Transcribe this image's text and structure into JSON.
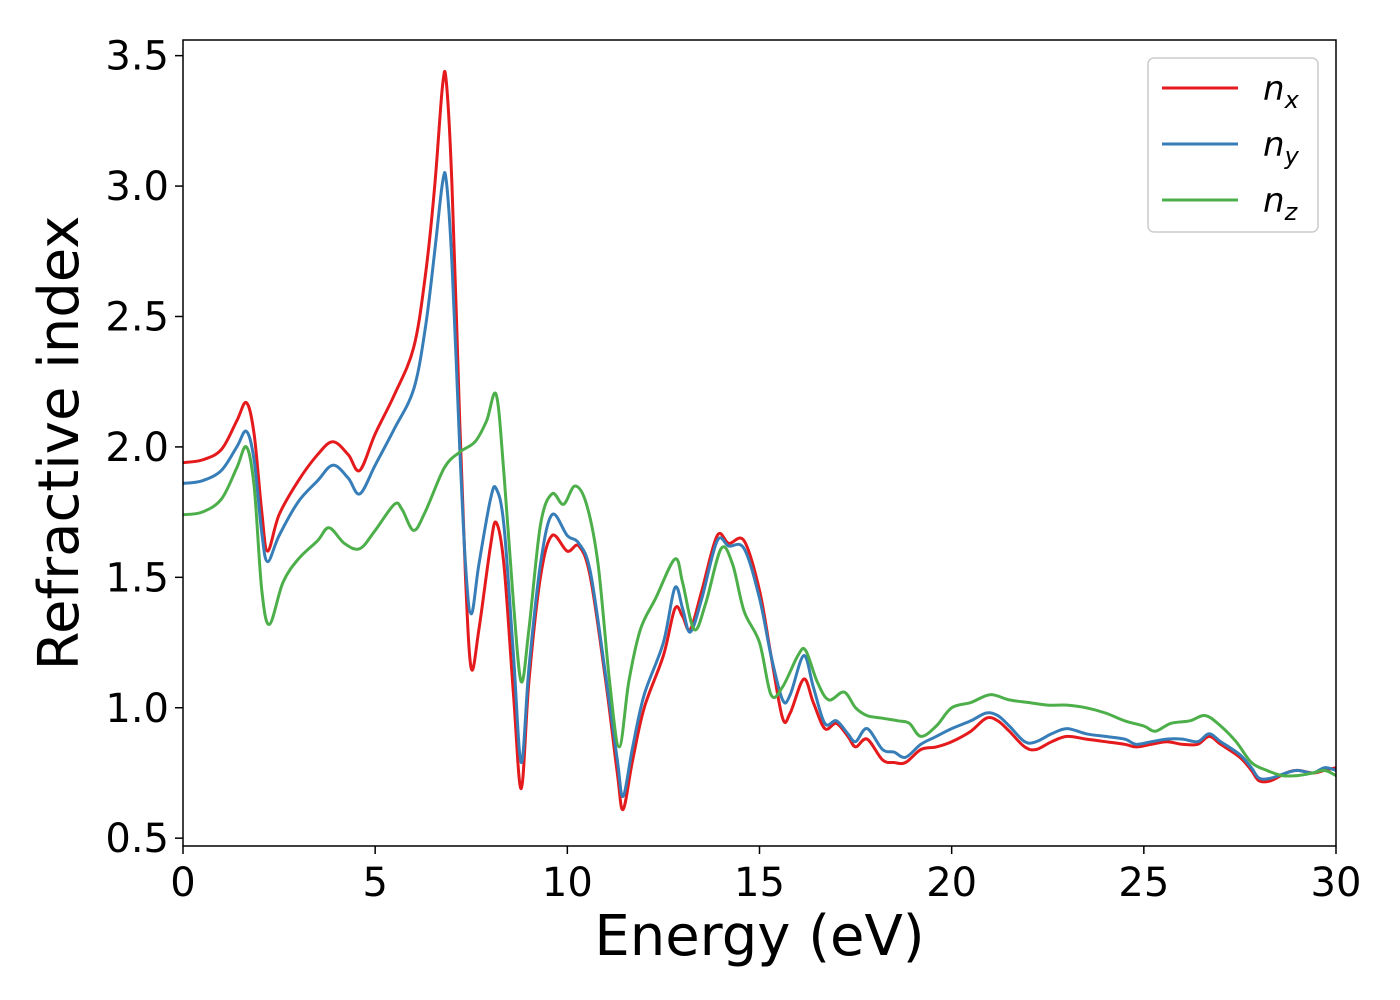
{
  "chart_data": {
    "type": "line",
    "title": "",
    "xlabel": "Energy (eV)",
    "ylabel": "Refractive index",
    "xlim": [
      0,
      30
    ],
    "ylim": [
      0.47,
      3.56
    ],
    "xticks": [
      0,
      5,
      10,
      15,
      20,
      25,
      30
    ],
    "yticks": [
      0.5,
      1.0,
      1.5,
      2.0,
      2.5,
      3.0,
      3.5
    ],
    "xtick_labels": [
      "0",
      "5",
      "10",
      "15",
      "20",
      "25",
      "30"
    ],
    "ytick_labels": [
      "0.5",
      "1.0",
      "1.5",
      "2.0",
      "2.5",
      "3.0",
      "3.5"
    ],
    "grid": false,
    "legend_position": "top-right",
    "series": [
      {
        "name": "n",
        "subscript": "x",
        "color": "#e41a1c",
        "points": [
          [
            0,
            1.94
          ],
          [
            0.5,
            1.95
          ],
          [
            1.0,
            1.99
          ],
          [
            1.4,
            2.1
          ],
          [
            1.65,
            2.17
          ],
          [
            1.85,
            2.05
          ],
          [
            2.05,
            1.75
          ],
          [
            2.2,
            1.6
          ],
          [
            2.5,
            1.74
          ],
          [
            3.0,
            1.87
          ],
          [
            3.5,
            1.97
          ],
          [
            3.9,
            2.02
          ],
          [
            4.3,
            1.97
          ],
          [
            4.6,
            1.91
          ],
          [
            5.0,
            2.05
          ],
          [
            5.5,
            2.2
          ],
          [
            6.0,
            2.38
          ],
          [
            6.3,
            2.65
          ],
          [
            6.55,
            3.0
          ],
          [
            6.75,
            3.38
          ],
          [
            6.85,
            3.4
          ],
          [
            7.0,
            3.0
          ],
          [
            7.2,
            2.1
          ],
          [
            7.35,
            1.5
          ],
          [
            7.5,
            1.15
          ],
          [
            7.7,
            1.3
          ],
          [
            8.0,
            1.62
          ],
          [
            8.15,
            1.71
          ],
          [
            8.35,
            1.55
          ],
          [
            8.6,
            1.05
          ],
          [
            8.8,
            0.69
          ],
          [
            9.0,
            1.1
          ],
          [
            9.3,
            1.5
          ],
          [
            9.6,
            1.66
          ],
          [
            10.0,
            1.6
          ],
          [
            10.3,
            1.62
          ],
          [
            10.6,
            1.5
          ],
          [
            11.0,
            1.1
          ],
          [
            11.3,
            0.75
          ],
          [
            11.45,
            0.61
          ],
          [
            11.7,
            0.8
          ],
          [
            12.0,
            1.0
          ],
          [
            12.5,
            1.2
          ],
          [
            12.8,
            1.38
          ],
          [
            13.0,
            1.35
          ],
          [
            13.2,
            1.3
          ],
          [
            13.5,
            1.45
          ],
          [
            13.9,
            1.66
          ],
          [
            14.2,
            1.63
          ],
          [
            14.6,
            1.64
          ],
          [
            15.0,
            1.45
          ],
          [
            15.3,
            1.2
          ],
          [
            15.6,
            0.96
          ],
          [
            15.8,
            0.98
          ],
          [
            16.15,
            1.11
          ],
          [
            16.4,
            1.02
          ],
          [
            16.7,
            0.92
          ],
          [
            17.0,
            0.94
          ],
          [
            17.3,
            0.89
          ],
          [
            17.5,
            0.85
          ],
          [
            17.8,
            0.88
          ],
          [
            18.2,
            0.8
          ],
          [
            18.5,
            0.79
          ],
          [
            18.8,
            0.79
          ],
          [
            19.2,
            0.84
          ],
          [
            19.6,
            0.85
          ],
          [
            20.0,
            0.87
          ],
          [
            20.5,
            0.91
          ],
          [
            20.9,
            0.96
          ],
          [
            21.2,
            0.95
          ],
          [
            21.5,
            0.91
          ],
          [
            21.9,
            0.85
          ],
          [
            22.2,
            0.84
          ],
          [
            22.6,
            0.87
          ],
          [
            23.0,
            0.89
          ],
          [
            23.5,
            0.88
          ],
          [
            24.0,
            0.87
          ],
          [
            24.5,
            0.86
          ],
          [
            24.8,
            0.85
          ],
          [
            25.2,
            0.86
          ],
          [
            25.6,
            0.87
          ],
          [
            26.0,
            0.86
          ],
          [
            26.4,
            0.86
          ],
          [
            26.7,
            0.89
          ],
          [
            27.0,
            0.86
          ],
          [
            27.5,
            0.81
          ],
          [
            27.8,
            0.76
          ],
          [
            28.0,
            0.72
          ],
          [
            28.3,
            0.72
          ],
          [
            28.7,
            0.75
          ],
          [
            29.0,
            0.76
          ],
          [
            29.4,
            0.75
          ],
          [
            29.7,
            0.76
          ],
          [
            30.0,
            0.77
          ]
        ]
      },
      {
        "name": "n",
        "subscript": "y",
        "color": "#377eb8",
        "points": [
          [
            0,
            1.86
          ],
          [
            0.5,
            1.87
          ],
          [
            1.0,
            1.91
          ],
          [
            1.4,
            2.0
          ],
          [
            1.65,
            2.06
          ],
          [
            1.85,
            1.95
          ],
          [
            2.05,
            1.67
          ],
          [
            2.2,
            1.56
          ],
          [
            2.5,
            1.66
          ],
          [
            3.0,
            1.79
          ],
          [
            3.5,
            1.87
          ],
          [
            3.9,
            1.93
          ],
          [
            4.3,
            1.88
          ],
          [
            4.6,
            1.82
          ],
          [
            5.0,
            1.93
          ],
          [
            5.5,
            2.07
          ],
          [
            6.0,
            2.22
          ],
          [
            6.3,
            2.45
          ],
          [
            6.55,
            2.75
          ],
          [
            6.75,
            3.01
          ],
          [
            6.85,
            3.02
          ],
          [
            7.0,
            2.7
          ],
          [
            7.2,
            2.0
          ],
          [
            7.35,
            1.55
          ],
          [
            7.5,
            1.36
          ],
          [
            7.7,
            1.55
          ],
          [
            8.0,
            1.8
          ],
          [
            8.15,
            1.84
          ],
          [
            8.35,
            1.7
          ],
          [
            8.6,
            1.2
          ],
          [
            8.8,
            0.79
          ],
          [
            9.0,
            1.15
          ],
          [
            9.3,
            1.55
          ],
          [
            9.6,
            1.74
          ],
          [
            10.0,
            1.66
          ],
          [
            10.3,
            1.63
          ],
          [
            10.6,
            1.52
          ],
          [
            11.0,
            1.12
          ],
          [
            11.3,
            0.8
          ],
          [
            11.45,
            0.66
          ],
          [
            11.7,
            0.85
          ],
          [
            12.0,
            1.05
          ],
          [
            12.5,
            1.25
          ],
          [
            12.8,
            1.46
          ],
          [
            13.0,
            1.38
          ],
          [
            13.2,
            1.29
          ],
          [
            13.5,
            1.42
          ],
          [
            13.9,
            1.64
          ],
          [
            14.2,
            1.62
          ],
          [
            14.6,
            1.61
          ],
          [
            15.0,
            1.42
          ],
          [
            15.3,
            1.2
          ],
          [
            15.6,
            1.03
          ],
          [
            15.8,
            1.05
          ],
          [
            16.15,
            1.2
          ],
          [
            16.4,
            1.08
          ],
          [
            16.7,
            0.94
          ],
          [
            17.0,
            0.95
          ],
          [
            17.3,
            0.9
          ],
          [
            17.5,
            0.87
          ],
          [
            17.8,
            0.92
          ],
          [
            18.2,
            0.84
          ],
          [
            18.5,
            0.83
          ],
          [
            18.8,
            0.81
          ],
          [
            19.2,
            0.86
          ],
          [
            19.6,
            0.89
          ],
          [
            20.0,
            0.92
          ],
          [
            20.5,
            0.95
          ],
          [
            20.9,
            0.98
          ],
          [
            21.2,
            0.97
          ],
          [
            21.5,
            0.93
          ],
          [
            21.9,
            0.87
          ],
          [
            22.2,
            0.87
          ],
          [
            22.6,
            0.9
          ],
          [
            23.0,
            0.92
          ],
          [
            23.5,
            0.9
          ],
          [
            24.0,
            0.89
          ],
          [
            24.5,
            0.88
          ],
          [
            24.8,
            0.86
          ],
          [
            25.2,
            0.87
          ],
          [
            25.6,
            0.88
          ],
          [
            26.0,
            0.88
          ],
          [
            26.4,
            0.87
          ],
          [
            26.7,
            0.9
          ],
          [
            27.0,
            0.87
          ],
          [
            27.5,
            0.82
          ],
          [
            27.8,
            0.77
          ],
          [
            28.0,
            0.73
          ],
          [
            28.3,
            0.73
          ],
          [
            28.7,
            0.75
          ],
          [
            29.0,
            0.76
          ],
          [
            29.4,
            0.75
          ],
          [
            29.7,
            0.77
          ],
          [
            30.0,
            0.76
          ]
        ]
      },
      {
        "name": "n",
        "subscript": "z",
        "color": "#4daf4a",
        "points": [
          [
            0,
            1.74
          ],
          [
            0.5,
            1.75
          ],
          [
            1.0,
            1.8
          ],
          [
            1.4,
            1.92
          ],
          [
            1.65,
            2.0
          ],
          [
            1.85,
            1.85
          ],
          [
            2.05,
            1.45
          ],
          [
            2.25,
            1.32
          ],
          [
            2.6,
            1.48
          ],
          [
            3.0,
            1.57
          ],
          [
            3.5,
            1.64
          ],
          [
            3.8,
            1.69
          ],
          [
            4.2,
            1.63
          ],
          [
            4.6,
            1.61
          ],
          [
            5.0,
            1.68
          ],
          [
            5.5,
            1.78
          ],
          [
            5.7,
            1.76
          ],
          [
            6.0,
            1.68
          ],
          [
            6.3,
            1.75
          ],
          [
            6.8,
            1.92
          ],
          [
            7.2,
            1.98
          ],
          [
            7.6,
            2.02
          ],
          [
            7.9,
            2.1
          ],
          [
            8.15,
            2.2
          ],
          [
            8.35,
            1.9
          ],
          [
            8.6,
            1.4
          ],
          [
            8.8,
            1.1
          ],
          [
            9.0,
            1.3
          ],
          [
            9.3,
            1.7
          ],
          [
            9.6,
            1.82
          ],
          [
            9.9,
            1.78
          ],
          [
            10.2,
            1.85
          ],
          [
            10.5,
            1.78
          ],
          [
            10.8,
            1.55
          ],
          [
            11.1,
            1.1
          ],
          [
            11.35,
            0.85
          ],
          [
            11.6,
            1.1
          ],
          [
            11.9,
            1.3
          ],
          [
            12.3,
            1.42
          ],
          [
            12.8,
            1.57
          ],
          [
            13.0,
            1.48
          ],
          [
            13.3,
            1.3
          ],
          [
            13.6,
            1.4
          ],
          [
            14.0,
            1.61
          ],
          [
            14.3,
            1.55
          ],
          [
            14.6,
            1.37
          ],
          [
            15.0,
            1.25
          ],
          [
            15.3,
            1.05
          ],
          [
            15.6,
            1.08
          ],
          [
            16.0,
            1.2
          ],
          [
            16.2,
            1.22
          ],
          [
            16.5,
            1.1
          ],
          [
            16.8,
            1.03
          ],
          [
            17.2,
            1.06
          ],
          [
            17.5,
            1.0
          ],
          [
            17.8,
            0.97
          ],
          [
            18.2,
            0.96
          ],
          [
            18.6,
            0.95
          ],
          [
            18.9,
            0.94
          ],
          [
            19.2,
            0.89
          ],
          [
            19.6,
            0.93
          ],
          [
            20.0,
            1.0
          ],
          [
            20.5,
            1.02
          ],
          [
            21.0,
            1.05
          ],
          [
            21.5,
            1.03
          ],
          [
            22.0,
            1.02
          ],
          [
            22.5,
            1.01
          ],
          [
            23.0,
            1.01
          ],
          [
            23.5,
            1.0
          ],
          [
            24.0,
            0.98
          ],
          [
            24.5,
            0.95
          ],
          [
            25.0,
            0.93
          ],
          [
            25.3,
            0.91
          ],
          [
            25.7,
            0.94
          ],
          [
            26.2,
            0.95
          ],
          [
            26.6,
            0.97
          ],
          [
            27.0,
            0.93
          ],
          [
            27.4,
            0.87
          ],
          [
            27.8,
            0.79
          ],
          [
            28.2,
            0.76
          ],
          [
            28.6,
            0.74
          ],
          [
            29.0,
            0.74
          ],
          [
            29.4,
            0.75
          ],
          [
            29.7,
            0.76
          ],
          [
            30.0,
            0.74
          ]
        ]
      }
    ]
  }
}
